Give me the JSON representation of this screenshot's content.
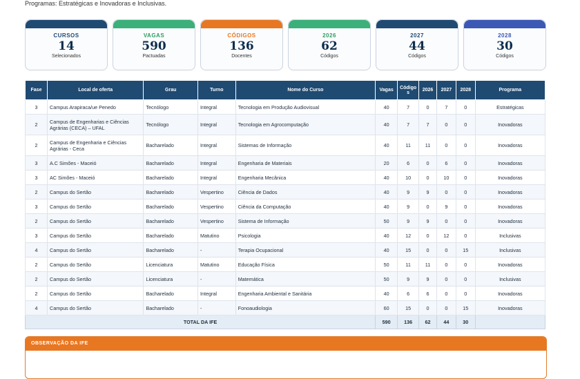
{
  "intro_text": "Programas: Estratégicas e Inovadoras e Inclusivas.",
  "cards": [
    {
      "label": "CURSOS",
      "value": "14",
      "sub": "Selecionados",
      "color": "#1f4a72",
      "label_color": "#1f4a72"
    },
    {
      "label": "VAGAS",
      "value": "590",
      "sub": "Pactuadas",
      "color": "#3bb07a",
      "label_color": "#2e9c64"
    },
    {
      "label": "CÓDIGOS",
      "value": "136",
      "sub": "Docentes",
      "color": "#e87722",
      "label_color": "#e87722"
    },
    {
      "label": "2026",
      "value": "62",
      "sub": "Códigos",
      "color": "#3bb07a",
      "label_color": "#2e9c64"
    },
    {
      "label": "2027",
      "value": "44",
      "sub": "Códigos",
      "color": "#1f4a72",
      "label_color": "#1f4a72"
    },
    {
      "label": "2028",
      "value": "30",
      "sub": "Códigos",
      "color": "#3b58b4",
      "label_color": "#3b58b4"
    }
  ],
  "table": {
    "headers": [
      "Fase",
      "Local de oferta",
      "Grau",
      "Turno",
      "Nome do Curso",
      "Vagas",
      "Código s",
      "2026",
      "2027",
      "2028",
      "Programa"
    ],
    "rows": [
      [
        "3",
        "Campus Arapiraca/ue Penedo",
        "Tecnólogo",
        "Integral",
        "Tecnologia em Produção Audiovisual",
        "40",
        "7",
        "0",
        "7",
        "0",
        "Estratégicas"
      ],
      [
        "2",
        "Campus de Engenharias e Ciências Agrárias (CECA) – UFAL",
        "Tecnólogo",
        "Integral",
        "Tecnologia em Agrocomputação",
        "40",
        "7",
        "7",
        "0",
        "0",
        "Inovadoras"
      ],
      [
        "2",
        "Campus de Engenharia e Ciências Agrárias - Ceca",
        "Bacharelado",
        "Integral",
        "Sistemas de Informação",
        "40",
        "11",
        "11",
        "0",
        "0",
        "Inovadoras"
      ],
      [
        "3",
        "A.C Simões - Maceió",
        "Bacharelado",
        "Integral",
        "Engenharia de Materiais",
        "20",
        "6",
        "0",
        "6",
        "0",
        "Inovadoras"
      ],
      [
        "3",
        "AC Simões - Maceió",
        "Bacharelado",
        "Integral",
        "Engenharia Mecânica",
        "40",
        "10",
        "0",
        "10",
        "0",
        "Inovadoras"
      ],
      [
        "2",
        "Campus do Sertão",
        "Bacharelado",
        "Vespertino",
        "Ciência de Dados",
        "40",
        "9",
        "9",
        "0",
        "0",
        "Inovadoras"
      ],
      [
        "3",
        "Campus do Sertão",
        "Bacharelado",
        "Vespertino",
        "Ciência da Computação",
        "40",
        "9",
        "0",
        "9",
        "0",
        "Inovadoras"
      ],
      [
        "2",
        "Campus do Sertão",
        "Bacharelado",
        "Vespertino",
        "Sistema de Informação",
        "50",
        "9",
        "9",
        "0",
        "0",
        "Inovadoras"
      ],
      [
        "3",
        "Campus do Sertão",
        "Bacharelado",
        "Matutino",
        "Psicologia",
        "40",
        "12",
        "0",
        "12",
        "0",
        "Inclusivas"
      ],
      [
        "4",
        "Campus do Sertão",
        "Bacharelado",
        "-",
        "Terapia Ocupacional",
        "40",
        "15",
        "0",
        "0",
        "15",
        "Inclusivas"
      ],
      [
        "2",
        "Campus do Sertão",
        "Licenciatura",
        "Matutino",
        "Educação Física",
        "50",
        "11",
        "11",
        "0",
        "0",
        "Inovadoras"
      ],
      [
        "2",
        "Campus do Sertão",
        "Licenciatura",
        "-",
        "Matemática",
        "50",
        "9",
        "9",
        "0",
        "0",
        "Inclusivas"
      ],
      [
        "2",
        "Campus do Sertão",
        "Bacharelado",
        "Integral",
        "Engenharia Ambiental e Sanitária",
        "40",
        "6",
        "6",
        "0",
        "0",
        "Inovadoras"
      ],
      [
        "4",
        "Campus do Sertão",
        "Bacharelado",
        "-",
        "Fonoaudiologia",
        "60",
        "15",
        "0",
        "0",
        "15",
        "Inovadoras"
      ]
    ],
    "total": {
      "label": "TOTAL DA IFE",
      "vagas": "590",
      "codigos": "136",
      "y2026": "62",
      "y2027": "44",
      "y2028": "30"
    }
  },
  "observation": {
    "title": "OBSERVAÇÃO DA IFE"
  }
}
